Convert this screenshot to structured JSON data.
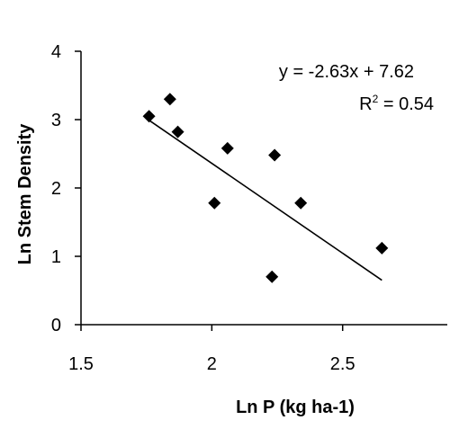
{
  "chart_data": {
    "type": "scatter",
    "title": "",
    "xlabel": "Ln P (kg ha-1)",
    "ylabel": "Ln Stem Density",
    "xlim": [
      1.5,
      2.9
    ],
    "ylim": [
      0,
      4
    ],
    "x_ticks": [
      "1.5",
      "2",
      "2.5"
    ],
    "x_tick_values": [
      1.5,
      2.0,
      2.5
    ],
    "y_ticks": [
      "0",
      "1",
      "2",
      "3",
      "4"
    ],
    "y_tick_values": [
      0,
      1,
      2,
      3,
      4
    ],
    "points": [
      {
        "x": 1.76,
        "y": 3.05
      },
      {
        "x": 1.84,
        "y": 3.3
      },
      {
        "x": 1.87,
        "y": 2.82
      },
      {
        "x": 2.01,
        "y": 1.78
      },
      {
        "x": 2.06,
        "y": 2.58
      },
      {
        "x": 2.23,
        "y": 0.7
      },
      {
        "x": 2.24,
        "y": 2.48
      },
      {
        "x": 2.34,
        "y": 1.78
      },
      {
        "x": 2.65,
        "y": 1.12
      }
    ],
    "trendline": {
      "slope": -2.63,
      "intercept": 7.62,
      "x_start": 1.76,
      "x_end": 2.65
    },
    "equation_text": "y = -2.63x + 7.62",
    "r2_prefix": "R",
    "r2_exponent": "2",
    "r2_value": " = 0.54",
    "marker": "diamond",
    "color": "#000000",
    "grid": false
  }
}
